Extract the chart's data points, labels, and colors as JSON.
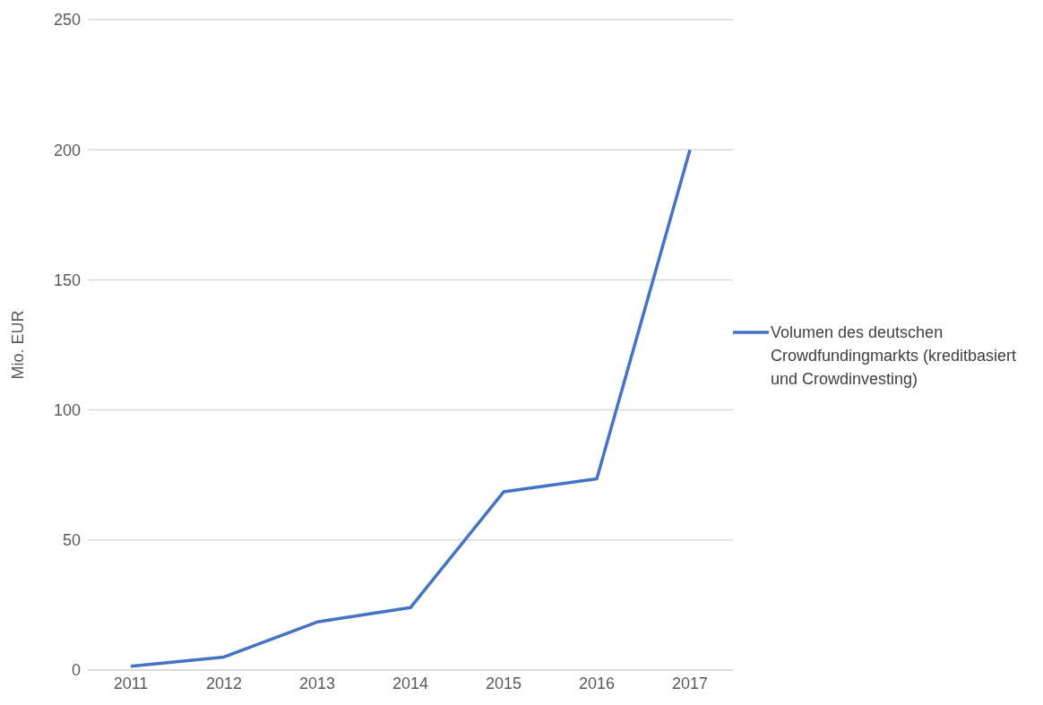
{
  "chart_data": {
    "type": "line",
    "ylabel": "Mio. EUR",
    "categories": [
      "2011",
      "2012",
      "2013",
      "2014",
      "2015",
      "2016",
      "2017"
    ],
    "series": [
      {
        "name": "Volumen des deutschen Crowdfundingmarkts (kreditbasiert und Crowdinvesting)",
        "color": "#4472c4",
        "values": [
          1.5,
          5,
          18.5,
          24,
          68.5,
          73.5,
          200
        ]
      }
    ],
    "ylim": [
      0,
      250
    ],
    "yticks": [
      0,
      50,
      100,
      150,
      200,
      250
    ],
    "grid": "y",
    "legend": "right",
    "marker": "none"
  }
}
